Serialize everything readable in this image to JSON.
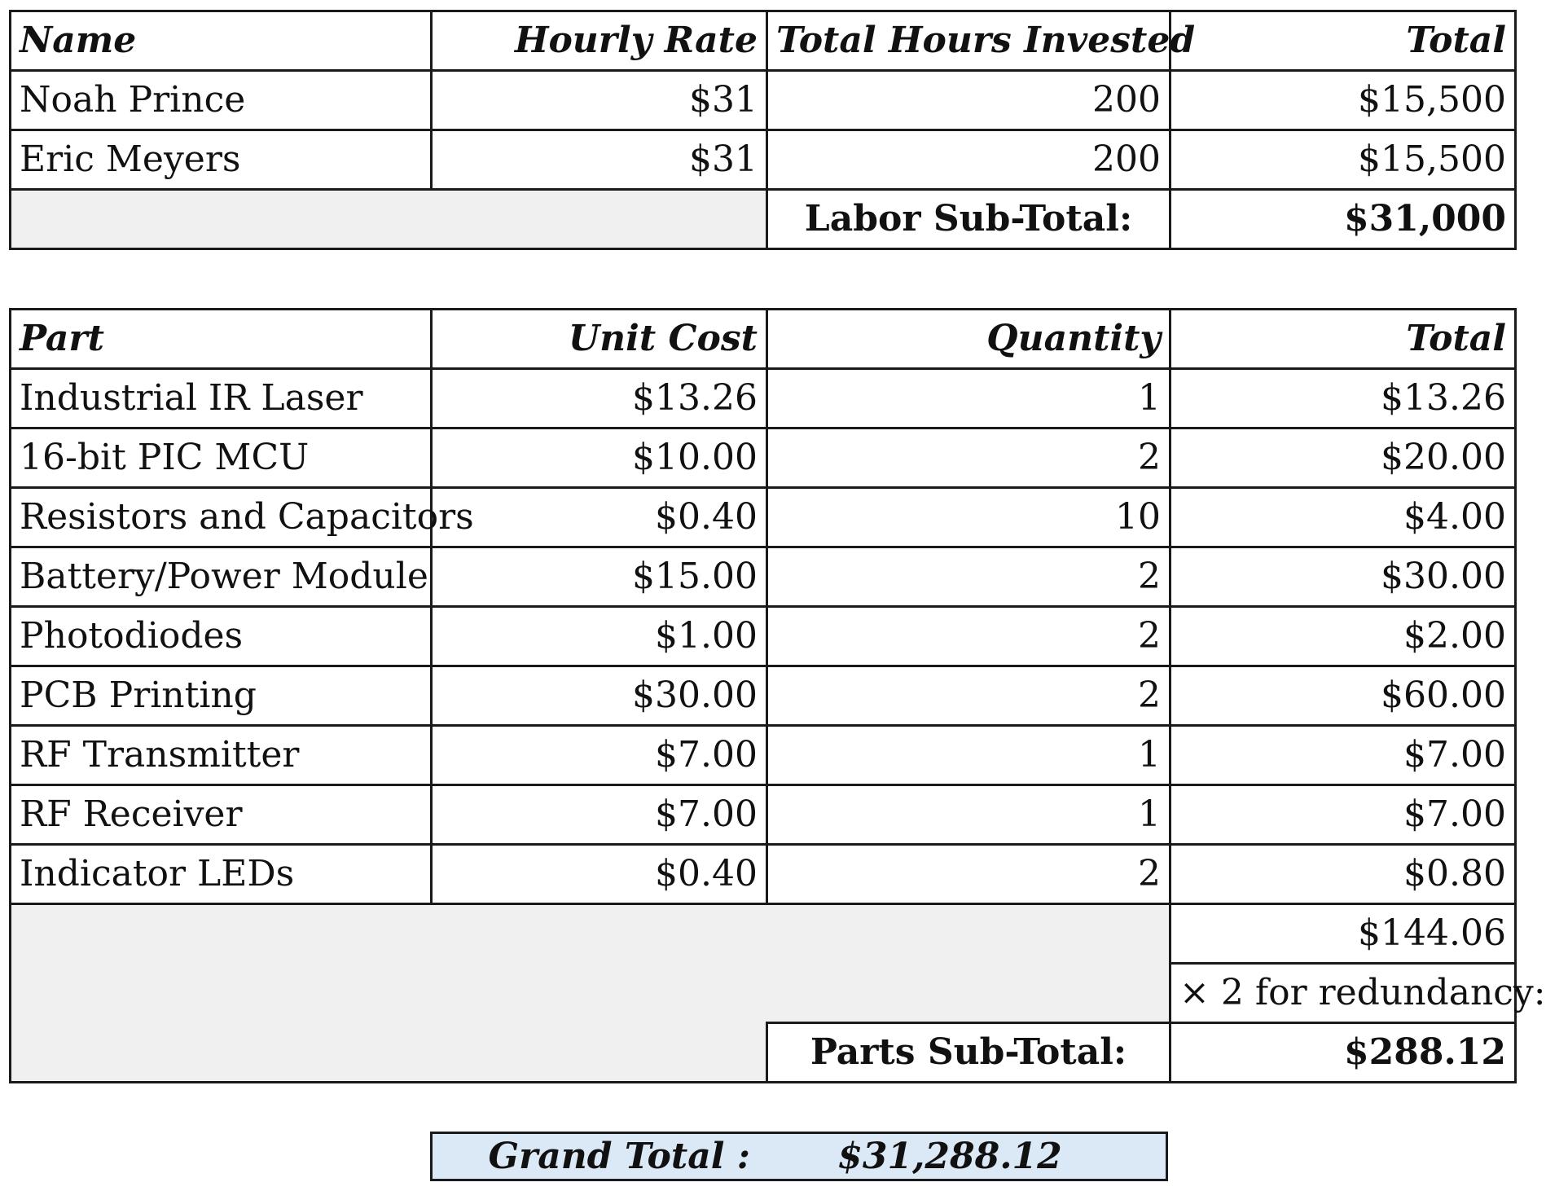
{
  "labor": {
    "headers": [
      "Name",
      "Hourly Rate",
      "Total Hours Invested",
      "Total"
    ],
    "rows": [
      {
        "name": "Noah Prince",
        "rate": "$31",
        "hours": "200",
        "total": "$15,500"
      },
      {
        "name": "Eric Meyers",
        "rate": "$31",
        "hours": "200",
        "total": "$15,500"
      }
    ],
    "subtotal_label": "Labor Sub-Total:",
    "subtotal_value": "$31,000"
  },
  "parts": {
    "headers": [
      "Part",
      "Unit Cost",
      "Quantity",
      "Total"
    ],
    "rows": [
      {
        "part": "Industrial IR Laser",
        "unit_cost": "$13.26",
        "qty": "1",
        "total": "$13.26"
      },
      {
        "part": "16-bit PIC MCU",
        "unit_cost": "$10.00",
        "qty": "2",
        "total": "$20.00"
      },
      {
        "part": "Resistors and Capacitors",
        "unit_cost": "$0.40",
        "qty": "10",
        "total": "$4.00"
      },
      {
        "part": "Battery/Power Module",
        "unit_cost": "$15.00",
        "qty": "2",
        "total": "$30.00"
      },
      {
        "part": "Photodiodes",
        "unit_cost": "$1.00",
        "qty": "2",
        "total": "$2.00"
      },
      {
        "part": "PCB Printing",
        "unit_cost": "$30.00",
        "qty": "2",
        "total": "$60.00"
      },
      {
        "part": "RF Transmitter",
        "unit_cost": "$7.00",
        "qty": "1",
        "total": "$7.00"
      },
      {
        "part": "RF Receiver",
        "unit_cost": "$7.00",
        "qty": "1",
        "total": "$7.00"
      },
      {
        "part": "Indicator LEDs",
        "unit_cost": "$0.40",
        "qty": "2",
        "total": "$0.80"
      }
    ],
    "sum_value": "$144.06",
    "redundancy_label": "× 2 for redundancy:",
    "subtotal_label": "Parts Sub-Total:",
    "subtotal_value": "$288.12"
  },
  "grand": {
    "label": "Grand Total :",
    "value": "$31,288.12"
  },
  "colors": {
    "shade": "#f0f0f0",
    "grand_bg": "#dbe9f6",
    "border": "#1a1a1a"
  }
}
